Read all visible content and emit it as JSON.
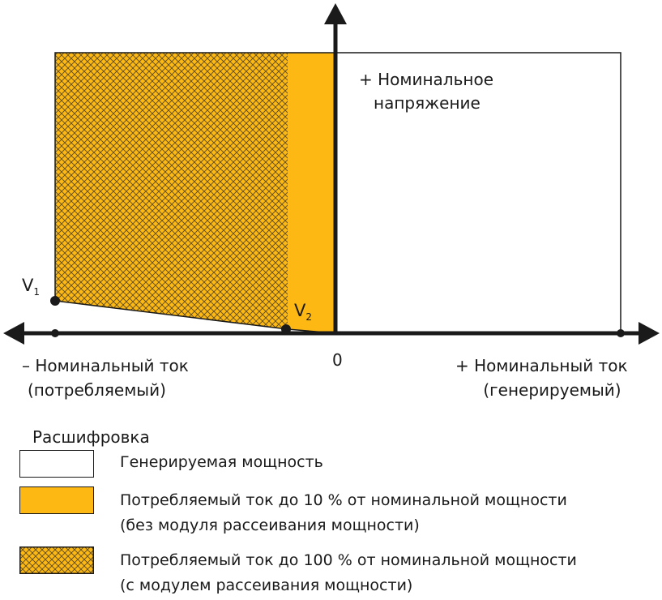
{
  "diagram": {
    "voltage_label_line1": "+ Номинальное",
    "voltage_label_line2": "напряжение",
    "neg_current_line1": "– Номинальный ток",
    "neg_current_line2": "(потребляемый)",
    "pos_current_line1": "+ Номинальный ток",
    "pos_current_line2": "(генерируемый)",
    "origin_label": "0",
    "v1_label": "V",
    "v1_sub": "1",
    "v2_label": "V",
    "v2_sub": "2"
  },
  "legend": {
    "title": "Расшифровка",
    "items": [
      {
        "text": [
          "Генерируемая мощность"
        ],
        "style": "white"
      },
      {
        "text": [
          "Потребляемый ток до 10 % от номинальной мощности",
          "(без модуля рассеивания мощности)"
        ],
        "style": "orange"
      },
      {
        "text": [
          "Потребляемый ток до 100 % от номинальной мощности",
          "(с модулем рассеивания мощности)"
        ],
        "style": "hatched"
      }
    ]
  },
  "colors": {
    "orange": "#FDB813",
    "line": "#1a1a1a",
    "hatch": "#5a4a1a"
  }
}
